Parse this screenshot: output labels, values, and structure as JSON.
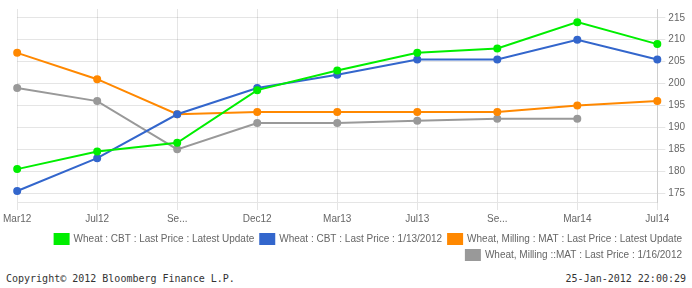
{
  "chart_data": {
    "type": "line",
    "categories": [
      "Mar12",
      "Jul12",
      "Se...",
      "Dec12",
      "Mar13",
      "Jul13",
      "Se...",
      "Mar14",
      "Jul14"
    ],
    "series": [
      {
        "name": "Wheat : CBT : Last Price : Latest Update",
        "color": "#00ee00",
        "values": [
          180.5,
          184.5,
          186.5,
          198.5,
          203,
          207,
          208,
          214,
          209
        ]
      },
      {
        "name": "Wheat : CBT : Last Price : 1/13/2012",
        "color": "#3366cc",
        "values": [
          175.5,
          183,
          193,
          199,
          202,
          205.5,
          205.5,
          210,
          205.5
        ]
      },
      {
        "name": "Wheat, Milling : MAT : Last Price : Latest Update",
        "color": "#ff8800",
        "values": [
          207,
          201,
          193,
          193.5,
          193.5,
          193.5,
          193.5,
          195,
          196
        ]
      },
      {
        "name": "Wheat, Milling ::MAT : Last Price : 1/16/2012",
        "color": "#999999",
        "values": [
          199,
          196,
          185,
          191,
          191,
          191.5,
          192,
          192,
          null
        ]
      }
    ],
    "ylim": [
      173,
      217
    ],
    "yticks": [
      175,
      180,
      185,
      190,
      195,
      200,
      205,
      210,
      215
    ],
    "grid": true,
    "legend": "lower right",
    "marker": "circle",
    "annotations": [
      "Copyright© 2012 Bloomberg Finance L.P.",
      "25-Jan-2012 22:00:29"
    ]
  }
}
